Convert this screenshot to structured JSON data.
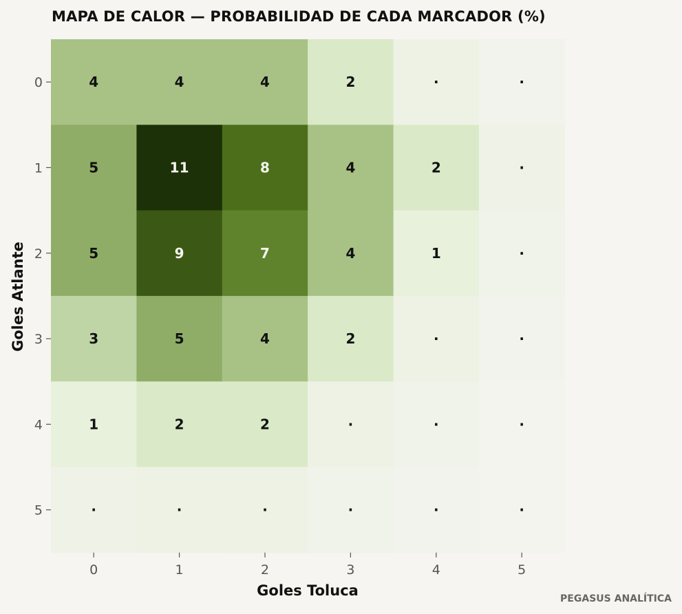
{
  "chart_data": {
    "type": "heatmap",
    "title": "MAPA DE CALOR — PROBABILIDAD DE CADA MARCADOR (%)",
    "xlabel": "Goles Toluca",
    "ylabel": "Goles Atlante",
    "x_categories": [
      "0",
      "1",
      "2",
      "3",
      "4",
      "5"
    ],
    "y_categories": [
      "0",
      "1",
      "2",
      "3",
      "4",
      "5"
    ],
    "values": [
      [
        4,
        4,
        4,
        2,
        0.4,
        0.1
      ],
      [
        5,
        11,
        8,
        4,
        2,
        0.3
      ],
      [
        5,
        9,
        7,
        4,
        1,
        0.2
      ],
      [
        3,
        5,
        4,
        2,
        0.5,
        0.1
      ],
      [
        1,
        2,
        2,
        0.4,
        0.2,
        0.05
      ],
      [
        0.3,
        0.5,
        0.4,
        0.2,
        0.1,
        0.02
      ]
    ],
    "labels": [
      [
        "4",
        "4",
        "4",
        "2",
        "·",
        "·"
      ],
      [
        "5",
        "11",
        "8",
        "4",
        "2",
        "·"
      ],
      [
        "5",
        "9",
        "7",
        "4",
        "1",
        "·"
      ],
      [
        "3",
        "5",
        "4",
        "2",
        "·",
        "·"
      ],
      [
        "1",
        "2",
        "2",
        "·",
        "·",
        "·"
      ],
      [
        "·",
        "·",
        "·",
        "·",
        "·",
        "·"
      ]
    ],
    "vmax": 11,
    "colormap": [
      "#f4f4ef",
      "#e2efd2",
      "#9fbb7b",
      "#54791f",
      "#1c3107"
    ],
    "grid": false,
    "legend": "none"
  },
  "watermark": "PEGASUS ANALÍTICA",
  "colors": {
    "background": "#f6f5f1",
    "text_dark": "#111111",
    "text_light": "#f4f4ef",
    "tick": "#555555"
  }
}
